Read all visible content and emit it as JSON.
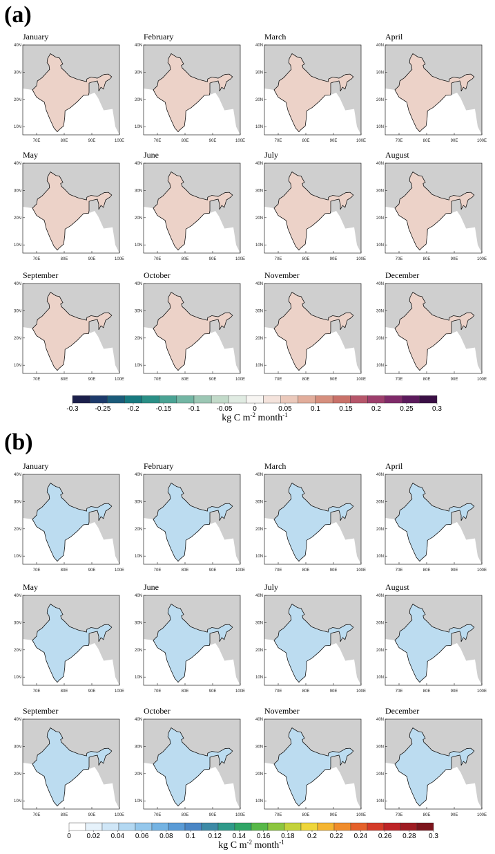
{
  "panels": [
    {
      "label": "(a)",
      "months": [
        "January",
        "February",
        "March",
        "April",
        "May",
        "June",
        "July",
        "August",
        "September",
        "October",
        "November",
        "December"
      ],
      "colorbar": {
        "ticks": [
          -0.3,
          -0.25,
          -0.2,
          -0.15,
          -0.1,
          -0.05,
          0,
          0.05,
          0.1,
          0.15,
          0.2,
          0.25,
          0.3
        ],
        "colors": [
          "#1b1f4b",
          "#1d3a6b",
          "#1b5b7a",
          "#17797f",
          "#2a8f86",
          "#4aa394",
          "#73b6a4",
          "#9cc7b4",
          "#c2dac9",
          "#e0ebe2",
          "#f7f5f2",
          "#f4e3dc",
          "#ebc9bb",
          "#e2ad9b",
          "#d68f7e",
          "#c97169",
          "#b6566a",
          "#9d3e6c",
          "#7f2a69",
          "#5c1a5c",
          "#3a0f45"
        ],
        "unit": {
          "base": "kg C m",
          "exp": "-2",
          "rest": " month",
          "exp2": "-1"
        }
      }
    },
    {
      "label": "(b)",
      "months": [
        "January",
        "February",
        "March",
        "April",
        "May",
        "June",
        "July",
        "August",
        "September",
        "October",
        "November",
        "December"
      ],
      "colorbar": {
        "ticks": [
          0,
          0.02,
          0.04,
          0.06,
          0.08,
          0.1,
          0.12,
          0.14,
          0.16,
          0.18,
          0.2,
          0.22,
          0.24,
          0.26,
          0.28,
          0.3
        ],
        "colors": [
          "#ffffff",
          "#e6f2fb",
          "#cfe6f7",
          "#b3d8f2",
          "#94c7ec",
          "#74b3e3",
          "#5a9bd6",
          "#4a86c5",
          "#3d8aa6",
          "#2f9a8a",
          "#2fa566",
          "#57b848",
          "#8cc63f",
          "#c3d23b",
          "#efd63a",
          "#f5b531",
          "#f08c2b",
          "#e5612a",
          "#d43b28",
          "#bd2326",
          "#9e1b22",
          "#7c141c"
        ],
        "unit": {
          "base": "kg C m",
          "exp": "-2",
          "rest": " month",
          "exp2": "-1"
        }
      }
    }
  ],
  "lat_ticks": [
    {
      "value": 40,
      "label": "40N"
    },
    {
      "value": 30,
      "label": "30N"
    },
    {
      "value": 20,
      "label": "20N"
    },
    {
      "value": 10,
      "label": "10N"
    }
  ],
  "lon_ticks": [
    {
      "value": 70,
      "label": "70E"
    },
    {
      "value": 80,
      "label": "80E"
    },
    {
      "value": 90,
      "label": "90E"
    },
    {
      "value": 100,
      "label": "100E"
    }
  ]
}
